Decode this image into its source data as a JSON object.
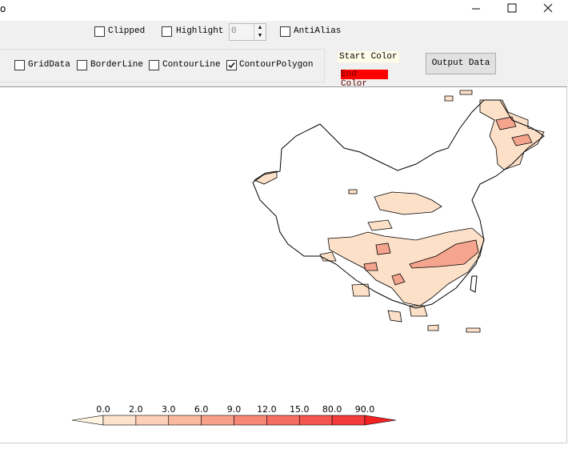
{
  "window": {
    "title": "o"
  },
  "toolbar": {
    "row1": [
      {
        "label": "Clipped",
        "checked": false
      },
      {
        "label": "Highlight",
        "checked": false
      },
      {
        "label": "AntiAlias",
        "checked": false
      }
    ],
    "spinner": "0",
    "row2": [
      {
        "label": "GridData",
        "checked": false
      },
      {
        "label": "BorderLine",
        "checked": false
      },
      {
        "label": "ContourLine",
        "checked": false
      },
      {
        "label": "ContourPolygon",
        "checked": true
      }
    ],
    "start_color": "Start Color",
    "end_color": "End Color",
    "output_button": "Output Data"
  },
  "legend": {
    "labels": [
      "0.0",
      "2.0",
      "3.0",
      "6.0",
      "9.0",
      "12.0",
      "15.0",
      "80.0",
      "90.0"
    ],
    "colors": [
      "#fff3e2",
      "#fde2cc",
      "#fccfb6",
      "#fbb9a0",
      "#f9a08a",
      "#f78876",
      "#f66e62",
      "#f4554e",
      "#f33b3b",
      "#f22222"
    ]
  }
}
